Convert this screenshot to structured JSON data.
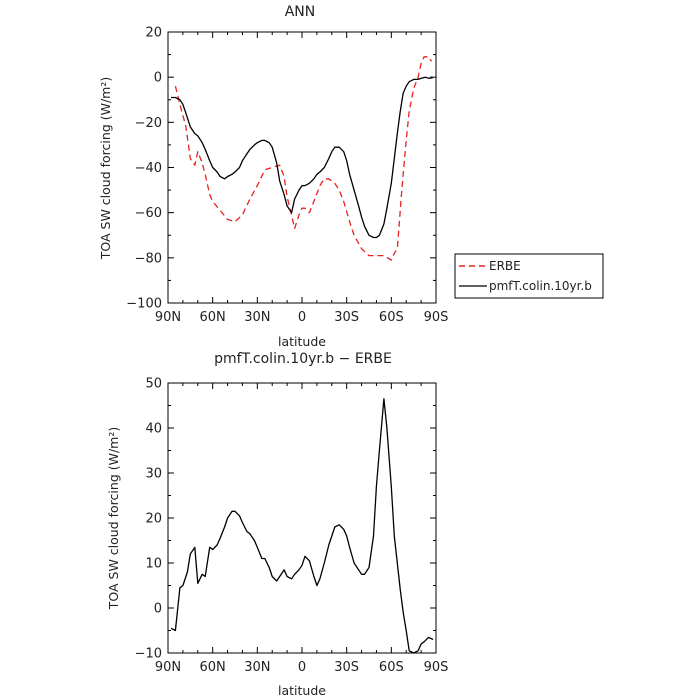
{
  "chart_data": [
    {
      "type": "line",
      "title": "ANN",
      "xlabel": "latitude",
      "ylabel": "TOA SW cloud forcing (W/m²)",
      "xlim": [
        90,
        -90
      ],
      "ylim": [
        -100,
        20
      ],
      "x_ticks": [
        90,
        60,
        30,
        0,
        -30,
        -60,
        -90
      ],
      "x_tick_labels": [
        "90N",
        "60N",
        "30N",
        "0",
        "30S",
        "60S",
        "90S"
      ],
      "y_ticks": [
        20,
        0,
        -20,
        -40,
        -60,
        -80,
        -100
      ],
      "legend": "right",
      "series": [
        {
          "name": "ERBE",
          "color": "#e8201e",
          "dash": "dashed",
          "x": [
            85,
            82,
            78,
            75,
            72,
            70,
            67,
            65,
            62,
            60,
            55,
            50,
            45,
            40,
            35,
            30,
            25,
            20,
            15,
            12,
            10,
            7,
            5,
            2,
            0,
            -2,
            -5,
            -8,
            -12,
            -15,
            -18,
            -22,
            -25,
            -28,
            -32,
            -35,
            -40,
            -45,
            -50,
            -55,
            -60,
            -62,
            -64,
            -67,
            -70,
            -72,
            -75,
            -78,
            -80,
            -82,
            -85,
            -87
          ],
          "values": [
            -4,
            -12,
            -22,
            -36,
            -39,
            -33,
            -38,
            -43,
            -52,
            -55,
            -59,
            -63,
            -64,
            -61,
            -54,
            -48,
            -41,
            -40,
            -39,
            -44,
            -53,
            -61,
            -67,
            -61,
            -58,
            -58,
            -60,
            -55,
            -48,
            -45,
            -45,
            -47,
            -50,
            -55,
            -64,
            -70,
            -76,
            -79,
            -79,
            -79,
            -81,
            -78,
            -76,
            -50,
            -28,
            -15,
            -5,
            0,
            6,
            9,
            9,
            7
          ]
        },
        {
          "name": "pmfT.colin.10yr.b",
          "color": "#000000",
          "dash": "solid",
          "x": [
            88,
            85,
            82,
            80,
            77,
            75,
            72,
            70,
            67,
            65,
            62,
            60,
            57,
            55,
            52,
            50,
            47,
            45,
            42,
            40,
            37,
            35,
            32,
            30,
            27,
            25,
            22,
            20,
            17,
            15,
            12,
            10,
            7,
            5,
            2,
            0,
            -2,
            -5,
            -8,
            -10,
            -12,
            -15,
            -18,
            -20,
            -22,
            -25,
            -28,
            -30,
            -32,
            -35,
            -38,
            -40,
            -42,
            -45,
            -48,
            -50,
            -52,
            -55,
            -57,
            -60,
            -62,
            -64,
            -66,
            -68,
            -70,
            -72,
            -75,
            -78,
            -80,
            -83,
            -85,
            -88
          ],
          "values": [
            -9,
            -9,
            -10,
            -12,
            -18,
            -22,
            -25,
            -26,
            -29,
            -32,
            -37,
            -40,
            -42,
            -44,
            -45,
            -44,
            -43,
            -42,
            -40,
            -37,
            -34,
            -32,
            -30,
            -29,
            -28,
            -28,
            -29,
            -31,
            -38,
            -46,
            -52,
            -57,
            -60,
            -54,
            -50,
            -48,
            -48,
            -47,
            -45,
            -43,
            -42,
            -40,
            -36,
            -33,
            -31,
            -31,
            -33,
            -37,
            -43,
            -50,
            -57,
            -62,
            -66,
            -70,
            -71,
            -71,
            -70,
            -65,
            -58,
            -47,
            -36,
            -25,
            -15,
            -7,
            -4,
            -2,
            -1,
            -1,
            -0.5,
            0,
            -0.5,
            -0.2
          ]
        }
      ]
    },
    {
      "type": "line",
      "title": "pmfT.colin.10yr.b − ERBE",
      "xlabel": "latitude",
      "ylabel": "TOA SW cloud forcing (W/m²)",
      "xlim": [
        90,
        -90
      ],
      "ylim": [
        -10,
        50
      ],
      "x_ticks": [
        90,
        60,
        30,
        0,
        -30,
        -60,
        -90
      ],
      "x_tick_labels": [
        "90N",
        "60N",
        "30N",
        "0",
        "30S",
        "60S",
        "90S"
      ],
      "y_ticks": [
        50,
        40,
        30,
        20,
        10,
        0,
        -10
      ],
      "series": [
        {
          "color": "#000000",
          "dash": "solid",
          "x": [
            88,
            85,
            82,
            80,
            77,
            75,
            72,
            70,
            67,
            65,
            62,
            60,
            57,
            55,
            52,
            50,
            47,
            45,
            42,
            40,
            37,
            35,
            32,
            30,
            27,
            25,
            22,
            20,
            17,
            15,
            12,
            10,
            7,
            5,
            2,
            0,
            -2,
            -5,
            -8,
            -10,
            -12,
            -15,
            -18,
            -20,
            -22,
            -25,
            -28,
            -30,
            -32,
            -35,
            -38,
            -40,
            -42,
            -45,
            -48,
            -50,
            -52,
            -55,
            -57,
            -60,
            -62,
            -64,
            -66,
            -68,
            -70,
            -72,
            -75,
            -78,
            -80,
            -82,
            -85,
            -88
          ],
          "values": [
            -4.5,
            -5,
            4.5,
            5,
            8,
            12,
            13.5,
            5.5,
            7.5,
            7,
            13.5,
            13,
            14,
            15.5,
            18,
            20,
            21.5,
            21.5,
            20.5,
            19,
            17,
            16.5,
            15,
            13.5,
            11,
            11,
            9,
            7,
            6,
            7,
            8.5,
            7,
            6.5,
            7.5,
            8.5,
            9.5,
            11.5,
            10.5,
            7,
            5,
            6.5,
            10,
            14,
            16,
            18,
            18.5,
            17.5,
            16,
            13.5,
            10,
            8.5,
            7.5,
            7.5,
            9,
            16,
            27,
            35,
            46.5,
            40,
            27,
            16,
            10,
            4,
            -1,
            -5,
            -9.5,
            -10,
            -9.5,
            -8,
            -7.5,
            -6.5,
            -7
          ]
        }
      ]
    }
  ]
}
